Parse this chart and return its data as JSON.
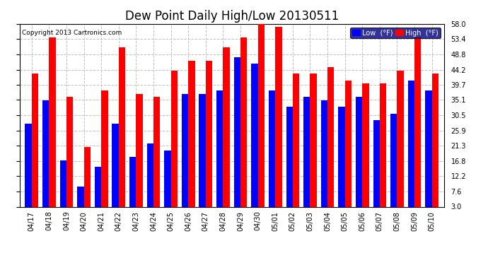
{
  "title": "Dew Point Daily High/Low 20130511",
  "copyright": "Copyright 2013 Cartronics.com",
  "dates": [
    "04/17",
    "04/18",
    "04/19",
    "04/20",
    "04/21",
    "04/22",
    "04/23",
    "04/24",
    "04/25",
    "04/26",
    "04/27",
    "04/28",
    "04/29",
    "04/30",
    "05/01",
    "05/02",
    "05/03",
    "05/04",
    "05/05",
    "05/06",
    "05/07",
    "05/08",
    "05/09",
    "05/10"
  ],
  "low_values": [
    28,
    35,
    17,
    9,
    15,
    28,
    18,
    22,
    20,
    37,
    37,
    38,
    48,
    46,
    38,
    33,
    36,
    35,
    33,
    36,
    29,
    31,
    41,
    38
  ],
  "high_values": [
    43,
    54,
    36,
    21,
    38,
    51,
    37,
    36,
    44,
    47,
    47,
    51,
    54,
    58,
    57,
    43,
    43,
    45,
    41,
    40,
    40,
    44,
    54,
    43
  ],
  "low_color": "#0000ff",
  "high_color": "#ff0000",
  "bg_color": "#ffffff",
  "grid_color": "#c0c0c0",
  "ytick_values": [
    3.0,
    7.6,
    12.2,
    16.8,
    21.3,
    25.9,
    30.5,
    35.1,
    39.7,
    44.2,
    48.8,
    53.4,
    58.0
  ],
  "ytick_labels": [
    "3.0",
    "7.6",
    "12.2",
    "16.8",
    "21.3",
    "25.9",
    "30.5",
    "35.1",
    "39.7",
    "44.2",
    "48.8",
    "53.4",
    "58.0"
  ],
  "ylim": [
    3.0,
    58.0
  ],
  "ybase": 3.0,
  "title_fontsize": 12,
  "tick_fontsize": 7,
  "legend_label_low": "Low  (°F)",
  "legend_label_high": "High  (°F)",
  "legend_bg": "#000080",
  "bar_width": 0.38
}
